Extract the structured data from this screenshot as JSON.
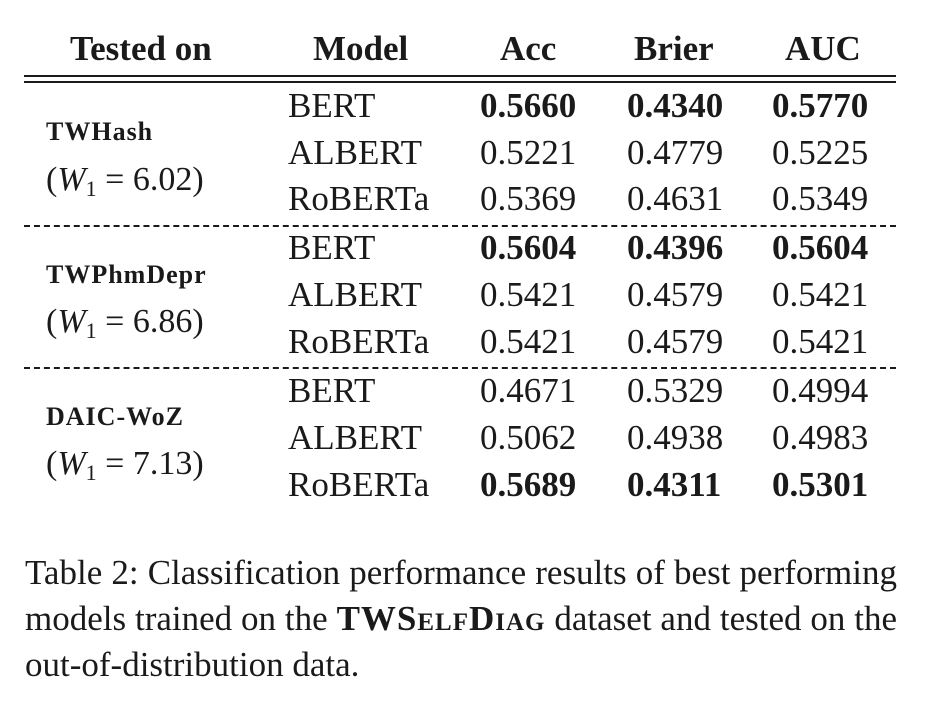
{
  "header": {
    "tested_on": "Tested on",
    "model": "Model",
    "acc": "Acc",
    "brier": "Brier",
    "auc": "AUC"
  },
  "groups": [
    {
      "name": "TWHash",
      "w_label": "W",
      "w_sub": "1",
      "w_value": " = 6.02)",
      "rows": [
        {
          "model": "BERT",
          "acc": "0.5660",
          "brier": "0.4340",
          "auc": "0.5770",
          "bold": true
        },
        {
          "model": "ALBERT",
          "acc": "0.5221",
          "brier": "0.4779",
          "auc": "0.5225",
          "bold": false
        },
        {
          "model": "RoBERTa",
          "acc": "0.5369",
          "brier": "0.4631",
          "auc": "0.5349",
          "bold": false
        }
      ]
    },
    {
      "name": "TWPhmDepr",
      "w_label": "W",
      "w_sub": "1",
      "w_value": " = 6.86)",
      "rows": [
        {
          "model": "BERT",
          "acc": "0.5604",
          "brier": "0.4396",
          "auc": "0.5604",
          "bold": true
        },
        {
          "model": "ALBERT",
          "acc": "0.5421",
          "brier": "0.4579",
          "auc": "0.5421",
          "bold": false
        },
        {
          "model": "RoBERTa",
          "acc": "0.5421",
          "brier": "0.4579",
          "auc": "0.5421",
          "bold": false
        }
      ]
    },
    {
      "name": "DAIC-WoZ",
      "w_label": "W",
      "w_sub": "1",
      "w_value": " = 7.13)",
      "rows": [
        {
          "model": "BERT",
          "acc": "0.4671",
          "brier": "0.5329",
          "auc": "0.4994",
          "bold": false
        },
        {
          "model": "ALBERT",
          "acc": "0.5062",
          "brier": "0.4938",
          "auc": "0.4983",
          "bold": false
        },
        {
          "model": "RoBERTa",
          "acc": "0.5689",
          "brier": "0.4311",
          "auc": "0.5301",
          "bold": true
        }
      ]
    }
  ],
  "caption": {
    "prefix": "Table 2: Classification performance results of best performing models trained on the ",
    "dataset": "TWSelfDiag",
    "suffix": " dataset and tested on the out-of-distribution data."
  }
}
